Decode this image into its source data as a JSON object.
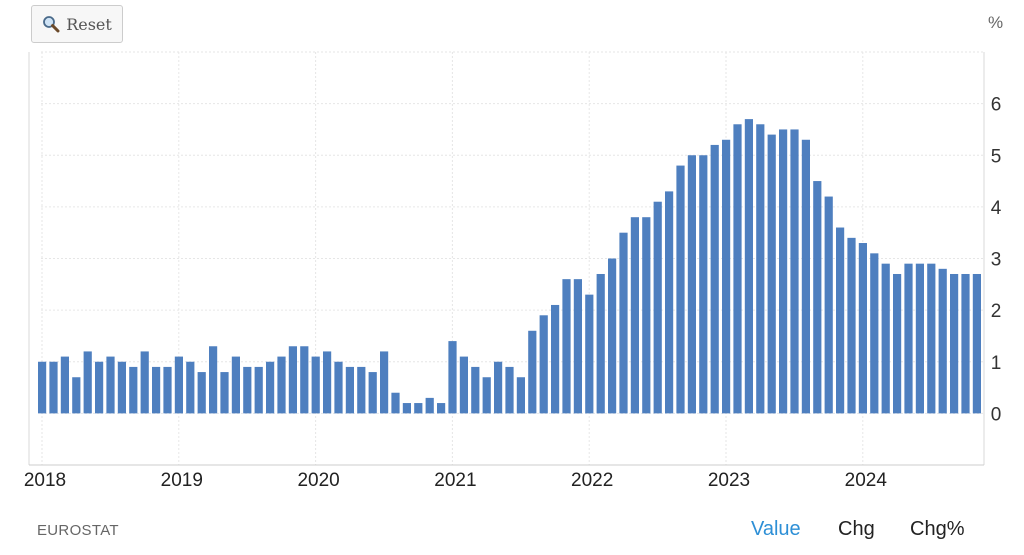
{
  "toolbar": {
    "reset_label": "Reset",
    "reset_icon": "magnifier-icon"
  },
  "unit_label": "%",
  "source_label": "EUROSTAT",
  "tabs": [
    {
      "label": "Value",
      "active": true
    },
    {
      "label": "Chg",
      "active": false
    },
    {
      "label": "Chg%",
      "active": false
    }
  ],
  "colors": {
    "bar": "#4e7fbf",
    "active_tab": "#2d8fd6",
    "grid": "#e6e6e6"
  },
  "chart_data": {
    "type": "bar",
    "x_ticks": [
      "2018",
      "2019",
      "2020",
      "2021",
      "2022",
      "2023",
      "2024"
    ],
    "y_ticks": [
      "0",
      "1",
      "2",
      "3",
      "4",
      "5",
      "6"
    ],
    "ylim": [
      -1,
      7
    ],
    "grid": true,
    "y_axis_position": "right",
    "start": "2018-01",
    "end": "2024-11",
    "values": [
      1.0,
      1.0,
      1.1,
      0.7,
      1.2,
      1.0,
      1.1,
      1.0,
      0.9,
      1.2,
      0.9,
      0.9,
      1.1,
      1.0,
      0.8,
      1.3,
      0.8,
      1.1,
      0.9,
      0.9,
      1.0,
      1.1,
      1.3,
      1.3,
      1.1,
      1.2,
      1.0,
      0.9,
      0.9,
      0.8,
      1.2,
      0.4,
      0.2,
      0.2,
      0.3,
      0.2,
      1.4,
      1.1,
      0.9,
      0.7,
      1.0,
      0.9,
      0.7,
      1.6,
      1.9,
      2.1,
      2.6,
      2.6,
      2.3,
      2.7,
      3.0,
      3.5,
      3.8,
      3.8,
      4.1,
      4.3,
      4.8,
      5.0,
      5.0,
      5.2,
      5.3,
      5.6,
      5.7,
      5.6,
      5.4,
      5.5,
      5.5,
      5.3,
      4.5,
      4.2,
      3.6,
      3.4,
      3.3,
      3.1,
      2.9,
      2.7,
      2.9,
      2.9,
      2.9,
      2.8,
      2.7,
      2.7,
      2.7
    ]
  }
}
